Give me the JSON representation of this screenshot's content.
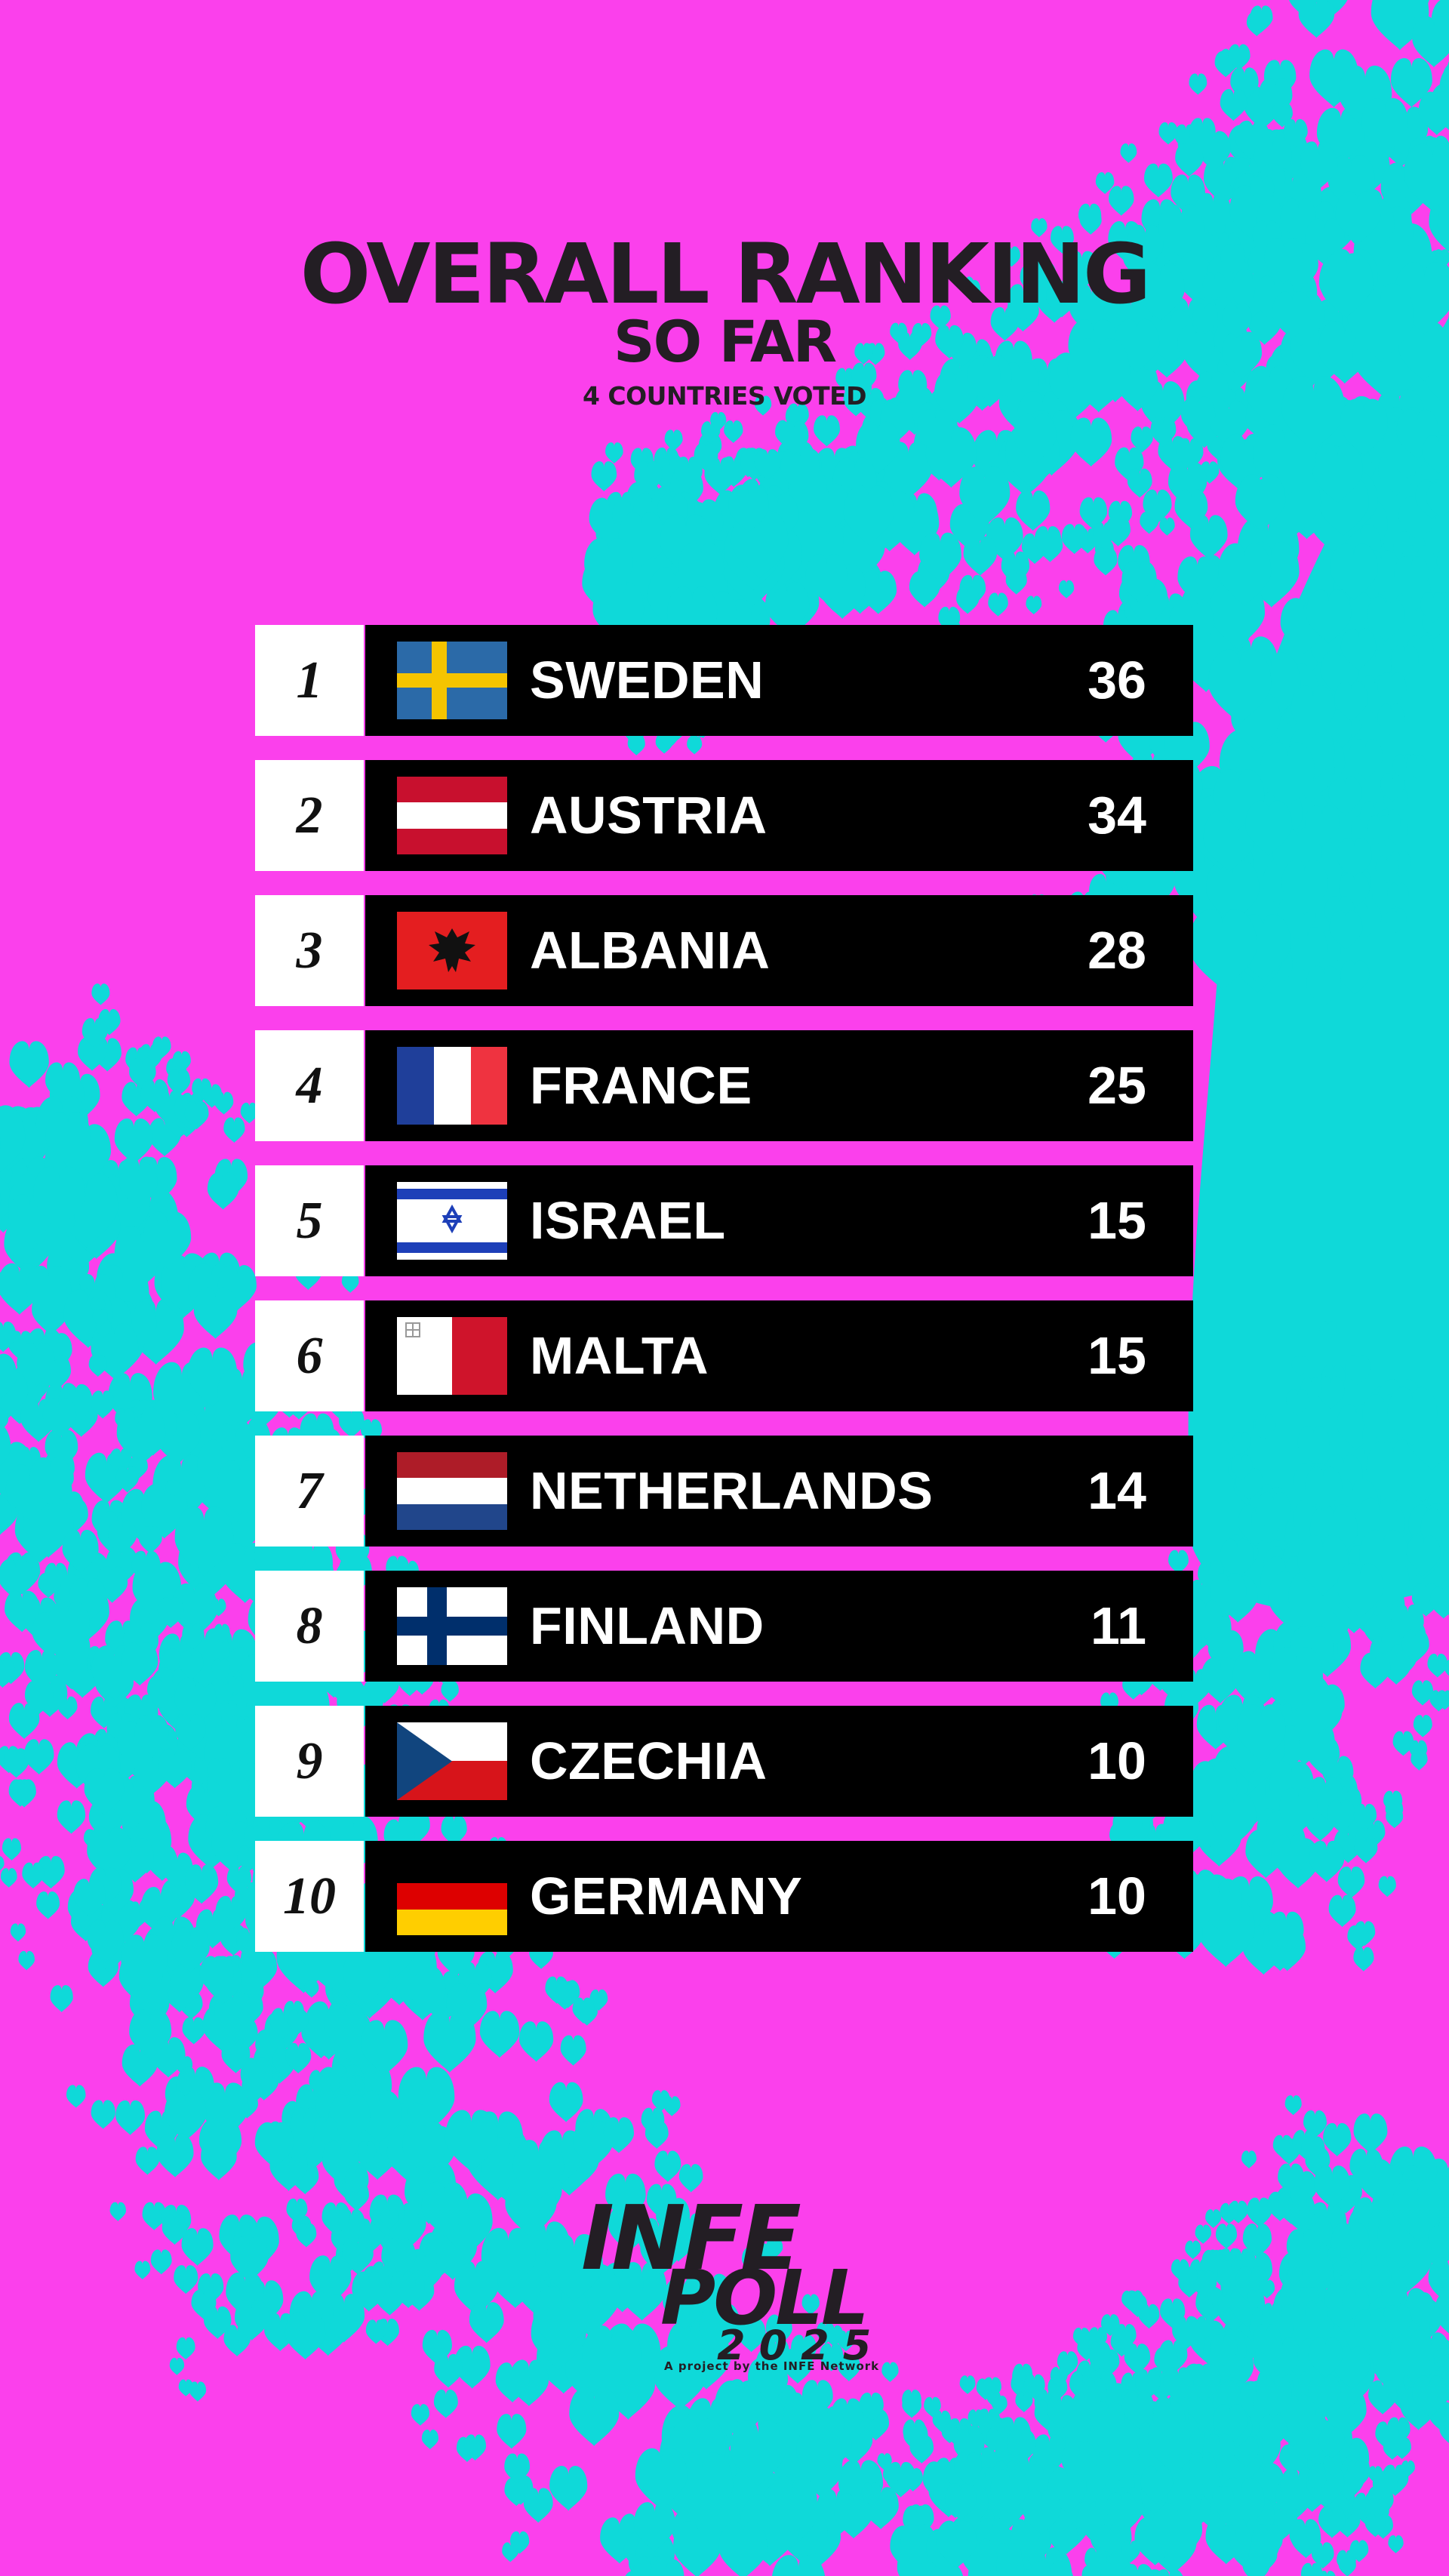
{
  "header": {
    "title": "OVERALL RANKING",
    "subtitle": "SO FAR",
    "note": "4 COUNTRIES VOTED"
  },
  "ranking": [
    {
      "rank": "1",
      "country": "SWEDEN",
      "points": "36",
      "flag": "sweden-flag"
    },
    {
      "rank": "2",
      "country": "AUSTRIA",
      "points": "34",
      "flag": "austria-flag"
    },
    {
      "rank": "3",
      "country": "ALBANIA",
      "points": "28",
      "flag": "albania-flag"
    },
    {
      "rank": "4",
      "country": "FRANCE",
      "points": "25",
      "flag": "france-flag"
    },
    {
      "rank": "5",
      "country": "ISRAEL",
      "points": "15",
      "flag": "israel-flag"
    },
    {
      "rank": "6",
      "country": "MALTA",
      "points": "15",
      "flag": "malta-flag"
    },
    {
      "rank": "7",
      "country": "NETHERLANDS",
      "points": "14",
      "flag": "netherlands-flag"
    },
    {
      "rank": "8",
      "country": "FINLAND",
      "points": "11",
      "flag": "finland-flag"
    },
    {
      "rank": "9",
      "country": "CZECHIA",
      "points": "10",
      "flag": "czechia-flag"
    },
    {
      "rank": "10",
      "country": "GERMANY",
      "points": "10",
      "flag": "germany-flag"
    }
  ],
  "logo": {
    "line1": "INFE",
    "line2": "POLL",
    "year": "2025",
    "tagline": "A project by the INFE Network"
  },
  "colors": {
    "background": "#fb40ec",
    "hearts": "#0fd9d9",
    "bar": "#000000",
    "rank_box": "#ffffff",
    "title_text": "#231e24"
  }
}
